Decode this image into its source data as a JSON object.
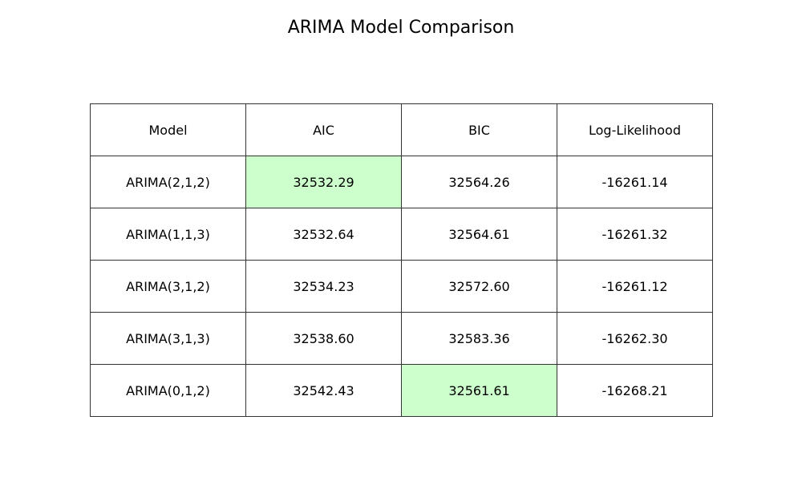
{
  "chart_data": {
    "type": "table",
    "title": "ARIMA Model Comparison",
    "columns": [
      "Model",
      "AIC",
      "BIC",
      "Log-Likelihood"
    ],
    "rows": [
      [
        "ARIMA(2,1,2)",
        "32532.29",
        "32564.26",
        "-16261.14"
      ],
      [
        "ARIMA(1,1,3)",
        "32532.64",
        "32564.61",
        "-16261.32"
      ],
      [
        "ARIMA(3,1,2)",
        "32534.23",
        "32572.60",
        "-16261.12"
      ],
      [
        "ARIMA(3,1,3)",
        "32538.60",
        "32583.36",
        "-16262.30"
      ],
      [
        "ARIMA(0,1,2)",
        "32542.43",
        "32561.61",
        "-16268.21"
      ]
    ],
    "highlighted_cells": [
      {
        "row": 0,
        "col": 1
      },
      {
        "row": 4,
        "col": 2
      }
    ],
    "highlight_color": "#ccffcc",
    "border_color": "#333333"
  }
}
